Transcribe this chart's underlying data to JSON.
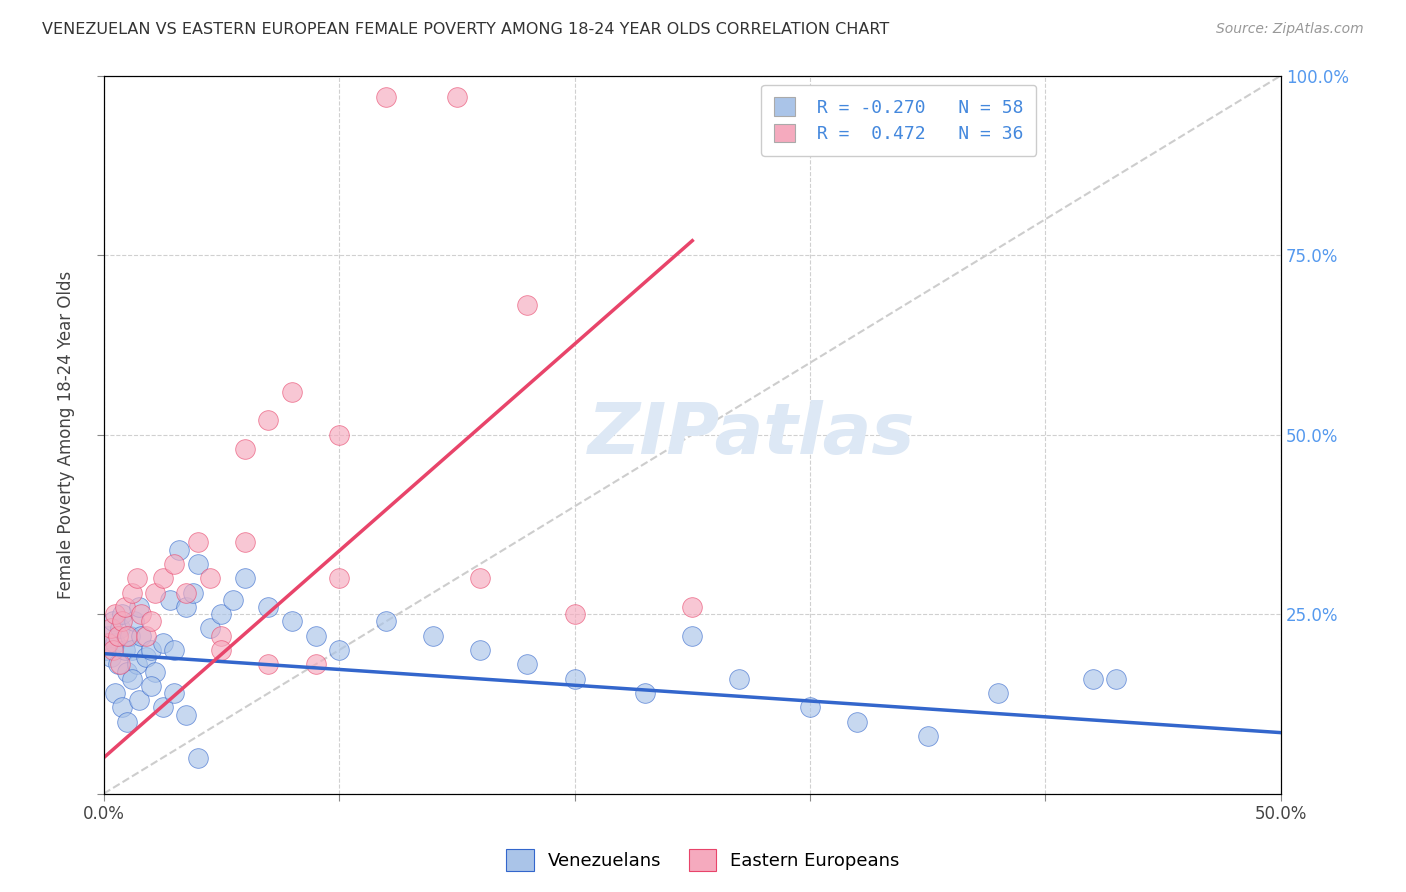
{
  "title": "VENEZUELAN VS EASTERN EUROPEAN FEMALE POVERTY AMONG 18-24 YEAR OLDS CORRELATION CHART",
  "source": "Source: ZipAtlas.com",
  "ylabel": "Female Poverty Among 18-24 Year Olds",
  "xlim": [
    0,
    0.5
  ],
  "ylim": [
    0,
    1.0
  ],
  "xticks": [
    0.0,
    0.1,
    0.2,
    0.3,
    0.4,
    0.5
  ],
  "xticklabels": [
    "0.0%",
    "",
    "",
    "",
    "",
    "50.0%"
  ],
  "yticks_right": [
    0.25,
    0.5,
    0.75,
    1.0
  ],
  "yticklabels_right": [
    "25.0%",
    "50.0%",
    "75.0%",
    "100.0%"
  ],
  "venezuelan_color": "#aac4e8",
  "eastern_color": "#f5aabe",
  "trend_blue": "#3366cc",
  "trend_pink": "#e8446a",
  "ref_line_color": "#c8c8c8",
  "background_color": "#ffffff",
  "watermark_color": "#dde8f5",
  "venezuelan_x": [
    0.001,
    0.002,
    0.003,
    0.004,
    0.005,
    0.006,
    0.007,
    0.008,
    0.009,
    0.01,
    0.011,
    0.012,
    0.013,
    0.014,
    0.015,
    0.016,
    0.018,
    0.02,
    0.022,
    0.025,
    0.028,
    0.03,
    0.032,
    0.035,
    0.038,
    0.04,
    0.045,
    0.05,
    0.055,
    0.06,
    0.07,
    0.08,
    0.09,
    0.1,
    0.12,
    0.14,
    0.16,
    0.18,
    0.2,
    0.23,
    0.25,
    0.27,
    0.3,
    0.32,
    0.35,
    0.38,
    0.42,
    0.43,
    0.005,
    0.008,
    0.01,
    0.012,
    0.015,
    0.02,
    0.025,
    0.03,
    0.035,
    0.04
  ],
  "venezuelan_y": [
    0.2,
    0.22,
    0.19,
    0.24,
    0.21,
    0.18,
    0.23,
    0.25,
    0.2,
    0.17,
    0.22,
    0.2,
    0.24,
    0.18,
    0.26,
    0.22,
    0.19,
    0.2,
    0.17,
    0.21,
    0.27,
    0.2,
    0.34,
    0.26,
    0.28,
    0.32,
    0.23,
    0.25,
    0.27,
    0.3,
    0.26,
    0.24,
    0.22,
    0.2,
    0.24,
    0.22,
    0.2,
    0.18,
    0.16,
    0.14,
    0.22,
    0.16,
    0.12,
    0.1,
    0.08,
    0.14,
    0.16,
    0.16,
    0.14,
    0.12,
    0.1,
    0.16,
    0.13,
    0.15,
    0.12,
    0.14,
    0.11,
    0.05
  ],
  "eastern_x": [
    0.002,
    0.003,
    0.004,
    0.005,
    0.006,
    0.007,
    0.008,
    0.009,
    0.01,
    0.012,
    0.014,
    0.016,
    0.018,
    0.02,
    0.022,
    0.025,
    0.03,
    0.035,
    0.04,
    0.045,
    0.05,
    0.06,
    0.07,
    0.08,
    0.1,
    0.12,
    0.15,
    0.18,
    0.06,
    0.1,
    0.16,
    0.2,
    0.25,
    0.05,
    0.07,
    0.09
  ],
  "eastern_y": [
    0.21,
    0.23,
    0.2,
    0.25,
    0.22,
    0.18,
    0.24,
    0.26,
    0.22,
    0.28,
    0.3,
    0.25,
    0.22,
    0.24,
    0.28,
    0.3,
    0.32,
    0.28,
    0.35,
    0.3,
    0.22,
    0.35,
    0.52,
    0.56,
    0.3,
    0.97,
    0.97,
    0.68,
    0.48,
    0.5,
    0.3,
    0.25,
    0.26,
    0.2,
    0.18,
    0.18
  ],
  "trend_ven_x0": 0.0,
  "trend_ven_x1": 0.5,
  "trend_ven_y0": 0.195,
  "trend_ven_y1": 0.085,
  "trend_eas_x0": 0.0,
  "trend_eas_x1": 0.25,
  "trend_eas_y0": 0.05,
  "trend_eas_y1": 0.77
}
